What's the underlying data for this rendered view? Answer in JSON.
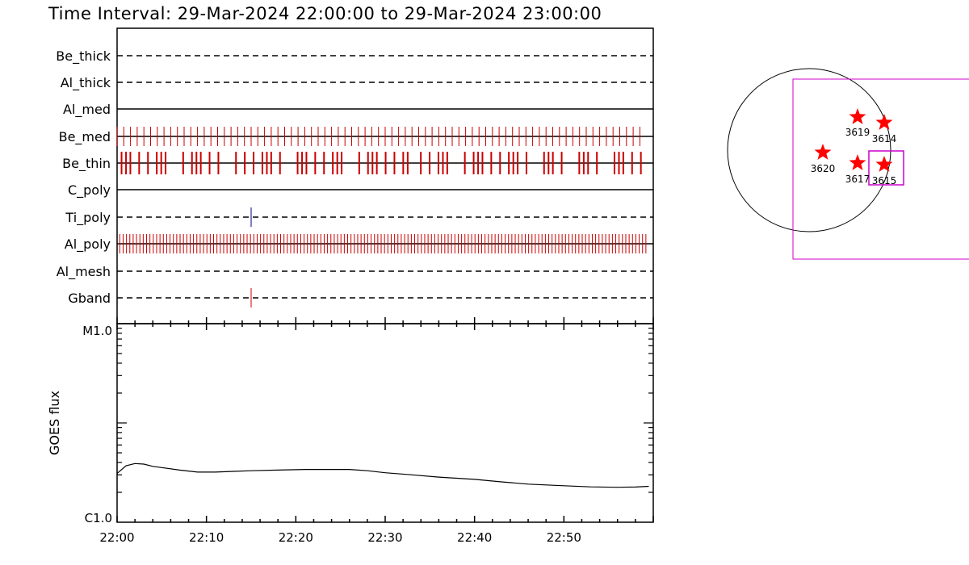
{
  "title": "Time Interval: 29-Mar-2024 22:00:00 to 29-Mar-2024 23:00:00",
  "chart_data": [
    {
      "type": "timeline",
      "xlim": [
        "22:00",
        "23:00"
      ],
      "x_ticks": [
        "22:00",
        "22:10",
        "22:20",
        "22:30",
        "22:40",
        "22:50"
      ],
      "channels": [
        {
          "name": "Be_thick",
          "line": "dashed",
          "color": "#000000",
          "marks": []
        },
        {
          "name": "Al_thick",
          "line": "dashed",
          "color": "#000000",
          "marks": []
        },
        {
          "name": "Al_med",
          "line": "solid",
          "color": "#000000",
          "marks": []
        },
        {
          "name": "Be_med",
          "line": "solid",
          "color": "#cc0000",
          "marks": "every 0.75 min from 22:00.0 to 22:59.0"
        },
        {
          "name": "Be_thin",
          "line": "solid",
          "color": "#cc0000",
          "marks": "frequent exposures 22:00-22:59, irregular gaps"
        },
        {
          "name": "C_poly",
          "line": "solid",
          "color": "#000000",
          "marks": []
        },
        {
          "name": "Ti_poly",
          "line": "dashed",
          "color": "#000080",
          "marks": [
            "22:15.0"
          ]
        },
        {
          "name": "Al_poly",
          "line": "solid",
          "color": "#cc0000",
          "marks": "every 0.375 min from 22:00.0 to 22:59.0"
        },
        {
          "name": "Al_mesh",
          "line": "dashed",
          "color": "#000000",
          "marks": []
        },
        {
          "name": "Gband",
          "line": "dashed",
          "color": "#cc0000",
          "marks": [
            "22:15.0"
          ]
        }
      ]
    },
    {
      "type": "line",
      "ylabel": "GOES flux",
      "y_scale": "log",
      "ylim": [
        "C1.0",
        "M1.0"
      ],
      "y_tick_labels": [
        "M1.0",
        "C1.0"
      ],
      "series": [
        {
          "x_min": [
            0,
            1,
            2,
            3,
            4,
            5,
            7,
            9,
            11,
            13,
            15,
            18,
            21,
            23,
            26,
            28,
            30,
            33,
            36,
            40,
            43,
            46,
            50,
            53,
            56,
            58,
            59.5
          ],
          "y_class_c": [
            3.1,
            3.7,
            3.9,
            3.85,
            3.65,
            3.55,
            3.35,
            3.2,
            3.2,
            3.25,
            3.3,
            3.35,
            3.4,
            3.4,
            3.4,
            3.3,
            3.15,
            3.0,
            2.85,
            2.7,
            2.55,
            2.42,
            2.33,
            2.27,
            2.25,
            2.26,
            2.3
          ]
        }
      ]
    },
    {
      "type": "diagram",
      "description_free": true,
      "markers": [
        {
          "label": "3619",
          "shape": "star",
          "color": "#ff0000"
        },
        {
          "label": "3614",
          "shape": "star",
          "color": "#ff0000"
        },
        {
          "label": "3620",
          "shape": "star",
          "color": "#ff0000"
        },
        {
          "label": "3617",
          "shape": "star",
          "color": "#ff0000"
        },
        {
          "label": "3615",
          "shape": "star",
          "color": "#ff0000"
        }
      ],
      "colors": {
        "limb": "#000000",
        "fov": "#cc00cc",
        "marker": "#ff0000"
      }
    }
  ]
}
